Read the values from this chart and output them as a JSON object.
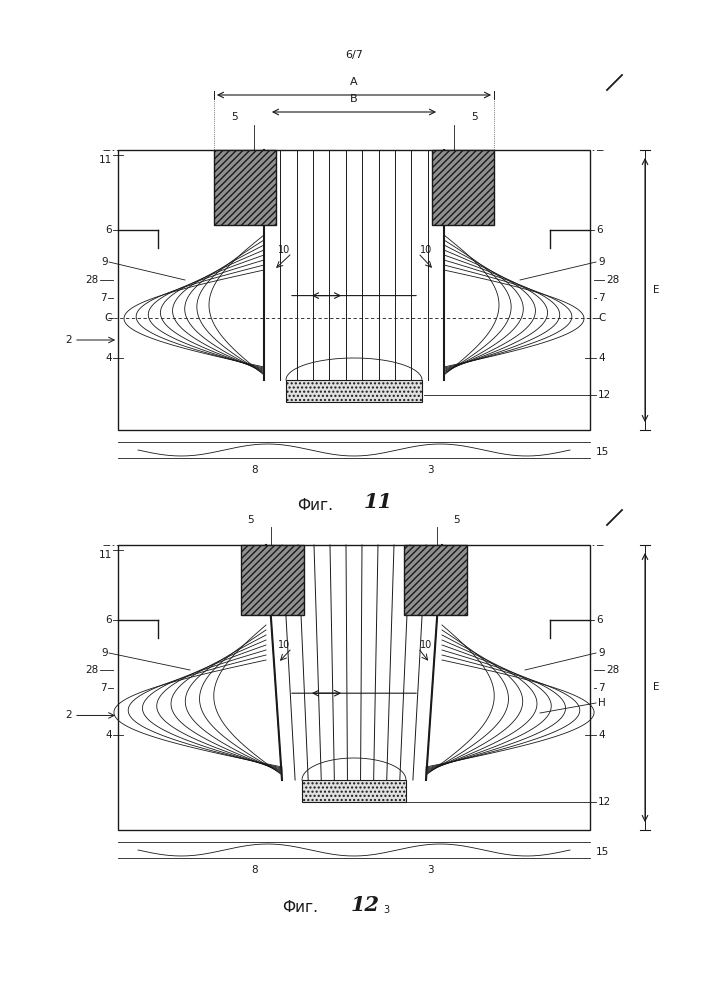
{
  "bg_color": "#ffffff",
  "line_color": "#1a1a1a",
  "page_label": "6/7",
  "fig1_caption": "Фиг.",
  "fig1_num": "11",
  "fig2_caption": "Фиг.",
  "fig2_num": "12",
  "fig2_sup": "3"
}
